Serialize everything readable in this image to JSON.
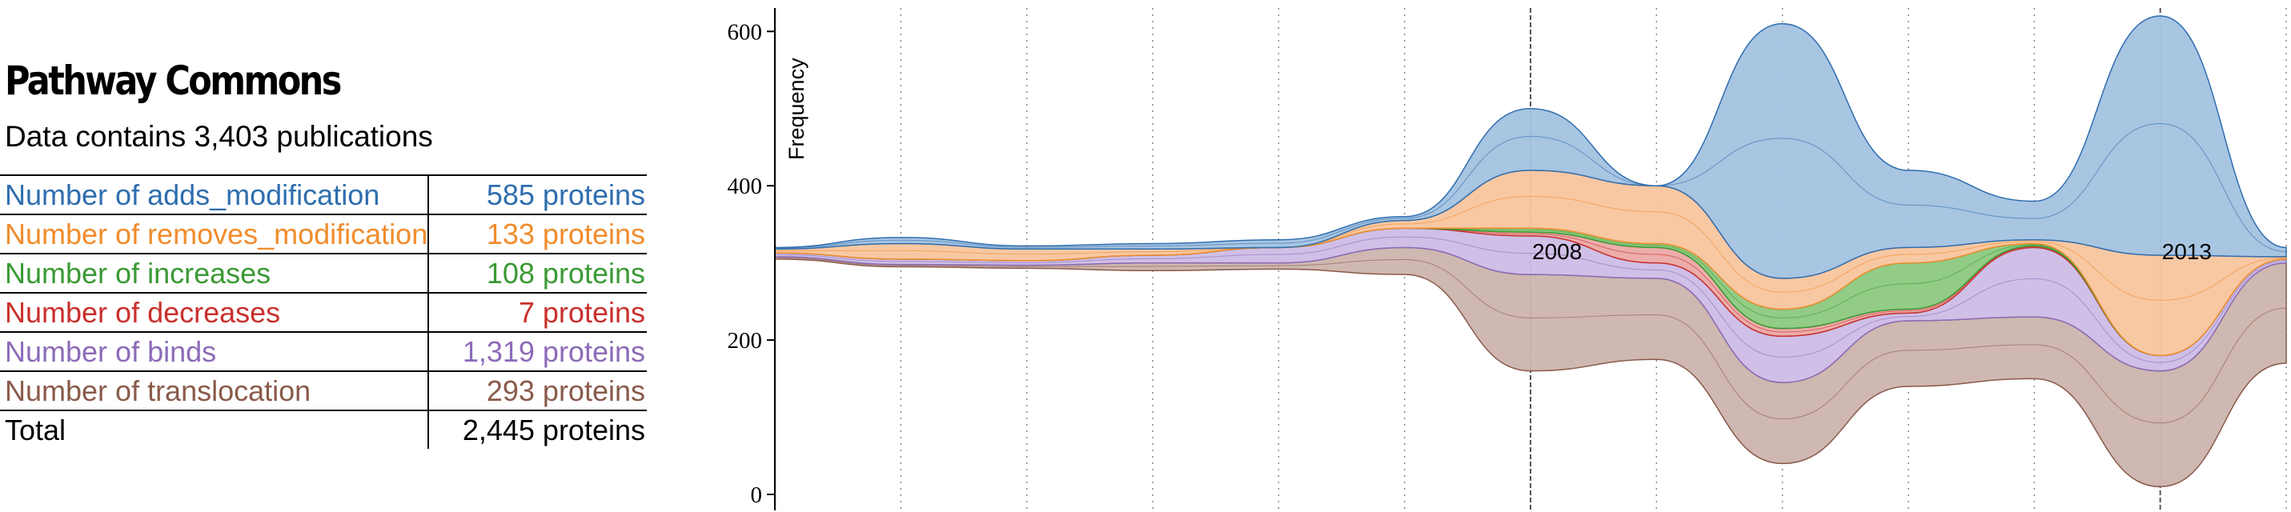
{
  "title": "Pathway Commons",
  "subtitle": "Data contains 3,403 publications",
  "rows": [
    {
      "name": "Number of adds_modification",
      "value": "585 proteins",
      "color": "#2f6eaf"
    },
    {
      "name": "Number of removes_modification",
      "value": "133 proteins",
      "color": "#f08c2c"
    },
    {
      "name": "Number of increases",
      "value": "108 proteins",
      "color": "#3a9a34"
    },
    {
      "name": "Number of decreases",
      "value": "7 proteins",
      "color": "#c9302c"
    },
    {
      "name": "Number of binds",
      "value": "1,319 proteins",
      "color": "#8c6bb8"
    },
    {
      "name": "Number of translocation",
      "value": "293 proteins",
      "color": "#8a5a4a"
    }
  ],
  "total": {
    "name": "Total",
    "value": "2,445 proteins",
    "color": "#000000"
  },
  "chart_data": {
    "type": "area",
    "ylabel": "Frequency",
    "ylim": [
      0,
      620
    ],
    "yticks": [
      "0",
      "200",
      "400",
      "600"
    ],
    "year_labels": [
      "2008",
      "2013"
    ],
    "x": [
      2002,
      2003,
      2004,
      2005,
      2006,
      2007,
      2008,
      2009,
      2010,
      2011,
      2012,
      2013,
      2014
    ],
    "series": [
      {
        "color": "#8a5a4a",
        "fill": "#cbb4ad",
        "lower": [
          305,
          295,
          293,
          290,
          292,
          285,
          160,
          175,
          40,
          140,
          150,
          10,
          170
        ],
        "upper": [
          308,
          298,
          297,
          300,
          300,
          320,
          285,
          280,
          145,
          225,
          230,
          160,
          300
        ]
      },
      {
        "color": "#8c6bb8",
        "fill": "#cdbde6",
        "lower": [
          308,
          298,
          297,
          300,
          300,
          320,
          285,
          280,
          145,
          225,
          230,
          160,
          300
        ],
        "upper": [
          313,
          305,
          303,
          310,
          320,
          345,
          335,
          300,
          205,
          235,
          320,
          180,
          305
        ]
      },
      {
        "color": "#c9302c",
        "fill": "#eba9a6",
        "lower": [
          313,
          305,
          303,
          310,
          320,
          345,
          335,
          300,
          205,
          235,
          320,
          180,
          305
        ],
        "upper": [
          313,
          305,
          303,
          310,
          320,
          345,
          340,
          320,
          215,
          240,
          322,
          180,
          305
        ]
      },
      {
        "color": "#3a9a34",
        "fill": "#8cc97f",
        "lower": [
          313,
          305,
          303,
          310,
          320,
          345,
          340,
          320,
          215,
          240,
          322,
          180,
          305
        ],
        "upper": [
          313,
          305,
          303,
          310,
          320,
          345,
          345,
          325,
          240,
          300,
          325,
          180,
          305
        ]
      },
      {
        "color": "#f08c2c",
        "fill": "#f8c59e",
        "lower": [
          313,
          305,
          303,
          310,
          320,
          345,
          345,
          325,
          240,
          300,
          325,
          180,
          305
        ],
        "upper": [
          318,
          325,
          318,
          318,
          320,
          355,
          420,
          400,
          280,
          320,
          330,
          310,
          308
        ]
      },
      {
        "color": "#2f6eaf",
        "fill": "#a3c2e0",
        "lower": [
          318,
          325,
          318,
          318,
          320,
          355,
          420,
          400,
          280,
          320,
          330,
          310,
          308
        ],
        "upper": [
          320,
          333,
          322,
          325,
          330,
          360,
          500,
          400,
          610,
          420,
          380,
          620,
          320
        ]
      }
    ]
  }
}
